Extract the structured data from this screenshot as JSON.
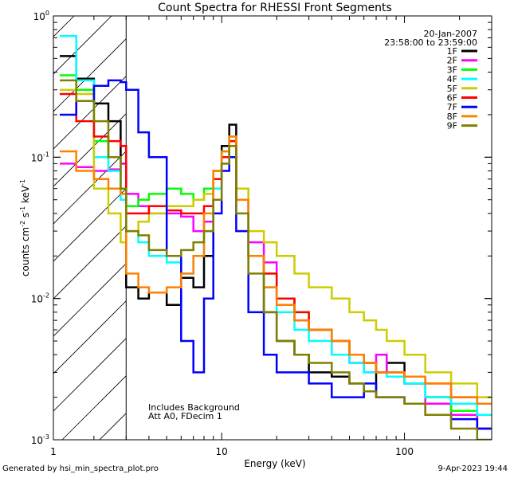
{
  "chart_data": {
    "type": "line",
    "step": true,
    "title": "Count Spectra for RHESSI Front Segments",
    "xlabel": "Energy (keV)",
    "ylabel_main": "counts cm",
    "ylabel_exp1": "-2",
    "ylabel_mid": " s",
    "ylabel_exp2": "-1",
    "ylabel_end": " keV",
    "ylabel_exp3": "-1",
    "xscale": "log",
    "yscale": "log",
    "xlim": [
      1.2,
      300
    ],
    "ylim": [
      0.001,
      1.0
    ],
    "x_ticks": [
      {
        "value": 10,
        "label": "10"
      },
      {
        "value": 100,
        "label": "100"
      }
    ],
    "x_label_one": "1",
    "y_ticks": [
      {
        "value": 1.0,
        "mant": "10",
        "exp": "0"
      },
      {
        "value": 0.1,
        "mant": "10",
        "exp": "-1"
      },
      {
        "value": 0.01,
        "mant": "10",
        "exp": "-2"
      },
      {
        "value": 0.001,
        "mant": "10",
        "exp": "-3"
      }
    ],
    "attenuator_edge_keV": 3.0,
    "date": "20-Jan-2007",
    "time_range": "23:58:00 to 23:59:00",
    "annotation_line1": "Includes Background",
    "annotation_line2": "Att A0, FDecim 1",
    "series": [
      {
        "name": "1F",
        "color": "#000000",
        "values": [
          [
            1.3,
            0.52
          ],
          [
            1.6,
            0.36
          ],
          [
            2.0,
            0.24
          ],
          [
            2.4,
            0.18
          ],
          [
            2.8,
            0.09
          ],
          [
            3.0,
            0.012
          ],
          [
            3.5,
            0.01
          ],
          [
            4.0,
            0.011
          ],
          [
            5.0,
            0.009
          ],
          [
            6.0,
            0.014
          ],
          [
            7.0,
            0.012
          ],
          [
            8.0,
            0.02
          ],
          [
            9.0,
            0.07
          ],
          [
            10.0,
            0.12
          ],
          [
            11.0,
            0.17
          ],
          [
            12.0,
            0.05
          ],
          [
            14.0,
            0.02
          ],
          [
            17.0,
            0.008
          ],
          [
            20.0,
            0.005
          ],
          [
            25.0,
            0.004
          ],
          [
            30.0,
            0.003
          ],
          [
            40.0,
            0.0028
          ],
          [
            50.0,
            0.0025
          ],
          [
            60.0,
            0.0022
          ],
          [
            70.0,
            0.003
          ],
          [
            80.0,
            0.0035
          ],
          [
            100.0,
            0.0025
          ],
          [
            130.0,
            0.002
          ],
          [
            180.0,
            0.0016
          ],
          [
            250.0,
            0.0012
          ],
          [
            300.0,
            0.0012
          ]
        ]
      },
      {
        "name": "2F",
        "color": "#ff00ff",
        "values": [
          [
            1.3,
            0.09
          ],
          [
            1.6,
            0.085
          ],
          [
            2.0,
            0.08
          ],
          [
            2.4,
            0.082
          ],
          [
            2.8,
            0.09
          ],
          [
            3.0,
            0.055
          ],
          [
            3.5,
            0.045
          ],
          [
            4.0,
            0.04
          ],
          [
            5.0,
            0.04
          ],
          [
            6.0,
            0.038
          ],
          [
            7.0,
            0.03
          ],
          [
            8.0,
            0.035
          ],
          [
            9.0,
            0.06
          ],
          [
            10.0,
            0.1
          ],
          [
            11.0,
            0.12
          ],
          [
            12.0,
            0.05
          ],
          [
            14.0,
            0.025
          ],
          [
            17.0,
            0.018
          ],
          [
            20.0,
            0.01
          ],
          [
            25.0,
            0.007
          ],
          [
            30.0,
            0.006
          ],
          [
            40.0,
            0.004
          ],
          [
            50.0,
            0.0035
          ],
          [
            60.0,
            0.003
          ],
          [
            70.0,
            0.004
          ],
          [
            80.0,
            0.003
          ],
          [
            100.0,
            0.0025
          ],
          [
            130.0,
            0.0018
          ],
          [
            180.0,
            0.0015
          ],
          [
            250.0,
            0.0012
          ],
          [
            300.0,
            0.0012
          ]
        ]
      },
      {
        "name": "3F",
        "color": "#00ff00",
        "values": [
          [
            1.3,
            0.38
          ],
          [
            1.6,
            0.3
          ],
          [
            2.0,
            0.13
          ],
          [
            2.4,
            0.1
          ],
          [
            2.8,
            0.06
          ],
          [
            3.0,
            0.045
          ],
          [
            3.5,
            0.05
          ],
          [
            4.0,
            0.055
          ],
          [
            5.0,
            0.06
          ],
          [
            6.0,
            0.055
          ],
          [
            7.0,
            0.05
          ],
          [
            8.0,
            0.06
          ],
          [
            9.0,
            0.08
          ],
          [
            10.0,
            0.11
          ],
          [
            11.0,
            0.14
          ],
          [
            12.0,
            0.06
          ],
          [
            14.0,
            0.02
          ],
          [
            17.0,
            0.015
          ],
          [
            20.0,
            0.01
          ],
          [
            25.0,
            0.008
          ],
          [
            30.0,
            0.006
          ],
          [
            40.0,
            0.005
          ],
          [
            50.0,
            0.004
          ],
          [
            60.0,
            0.0035
          ],
          [
            70.0,
            0.003
          ],
          [
            80.0,
            0.0028
          ],
          [
            100.0,
            0.0025
          ],
          [
            130.0,
            0.002
          ],
          [
            180.0,
            0.0016
          ],
          [
            250.0,
            0.0015
          ],
          [
            300.0,
            0.0015
          ]
        ]
      },
      {
        "name": "4F",
        "color": "#00ffff",
        "values": [
          [
            1.3,
            0.72
          ],
          [
            1.6,
            0.35
          ],
          [
            2.0,
            0.1
          ],
          [
            2.4,
            0.08
          ],
          [
            2.8,
            0.05
          ],
          [
            3.0,
            0.03
          ],
          [
            3.5,
            0.025
          ],
          [
            4.0,
            0.02
          ],
          [
            5.0,
            0.018
          ],
          [
            6.0,
            0.015
          ],
          [
            7.0,
            0.02
          ],
          [
            8.0,
            0.03
          ],
          [
            9.0,
            0.06
          ],
          [
            10.0,
            0.09
          ],
          [
            11.0,
            0.12
          ],
          [
            12.0,
            0.05
          ],
          [
            14.0,
            0.02
          ],
          [
            17.0,
            0.012
          ],
          [
            20.0,
            0.008
          ],
          [
            25.0,
            0.006
          ],
          [
            30.0,
            0.005
          ],
          [
            40.0,
            0.004
          ],
          [
            50.0,
            0.0035
          ],
          [
            60.0,
            0.003
          ],
          [
            70.0,
            0.003
          ],
          [
            80.0,
            0.0028
          ],
          [
            100.0,
            0.0025
          ],
          [
            130.0,
            0.002
          ],
          [
            180.0,
            0.0018
          ],
          [
            250.0,
            0.0015
          ],
          [
            300.0,
            0.0015
          ]
        ]
      },
      {
        "name": "5F",
        "color": "#cccc00",
        "values": [
          [
            1.3,
            0.3
          ],
          [
            1.6,
            0.28
          ],
          [
            2.0,
            0.06
          ],
          [
            2.4,
            0.04
          ],
          [
            2.8,
            0.025
          ],
          [
            3.0,
            0.03
          ],
          [
            3.5,
            0.035
          ],
          [
            4.0,
            0.04
          ],
          [
            5.0,
            0.045
          ],
          [
            6.0,
            0.045
          ],
          [
            7.0,
            0.05
          ],
          [
            8.0,
            0.055
          ],
          [
            9.0,
            0.08
          ],
          [
            10.0,
            0.1
          ],
          [
            11.0,
            0.13
          ],
          [
            12.0,
            0.06
          ],
          [
            14.0,
            0.03
          ],
          [
            17.0,
            0.025
          ],
          [
            20.0,
            0.02
          ],
          [
            25.0,
            0.015
          ],
          [
            30.0,
            0.012
          ],
          [
            40.0,
            0.01
          ],
          [
            50.0,
            0.008
          ],
          [
            60.0,
            0.007
          ],
          [
            70.0,
            0.006
          ],
          [
            80.0,
            0.005
          ],
          [
            100.0,
            0.004
          ],
          [
            130.0,
            0.003
          ],
          [
            180.0,
            0.0025
          ],
          [
            250.0,
            0.002
          ],
          [
            300.0,
            0.002
          ]
        ]
      },
      {
        "name": "6F",
        "color": "#ff0000",
        "values": [
          [
            1.3,
            0.28
          ],
          [
            1.6,
            0.18
          ],
          [
            2.0,
            0.14
          ],
          [
            2.4,
            0.13
          ],
          [
            2.8,
            0.12
          ],
          [
            3.0,
            0.04
          ],
          [
            3.5,
            0.04
          ],
          [
            4.0,
            0.045
          ],
          [
            5.0,
            0.042
          ],
          [
            6.0,
            0.04
          ],
          [
            7.0,
            0.04
          ],
          [
            8.0,
            0.045
          ],
          [
            9.0,
            0.07
          ],
          [
            10.0,
            0.1
          ],
          [
            11.0,
            0.13
          ],
          [
            12.0,
            0.05
          ],
          [
            14.0,
            0.02
          ],
          [
            17.0,
            0.015
          ],
          [
            20.0,
            0.01
          ],
          [
            25.0,
            0.008
          ],
          [
            30.0,
            0.006
          ],
          [
            40.0,
            0.005
          ],
          [
            50.0,
            0.004
          ],
          [
            60.0,
            0.0035
          ],
          [
            70.0,
            0.003
          ],
          [
            80.0,
            0.003
          ],
          [
            100.0,
            0.0028
          ],
          [
            130.0,
            0.0025
          ],
          [
            180.0,
            0.002
          ],
          [
            250.0,
            0.0018
          ],
          [
            300.0,
            0.0018
          ]
        ]
      },
      {
        "name": "7F",
        "color": "#0000ff",
        "values": [
          [
            1.3,
            0.2
          ],
          [
            1.6,
            0.25
          ],
          [
            2.0,
            0.32
          ],
          [
            2.4,
            0.35
          ],
          [
            2.8,
            0.34
          ],
          [
            3.0,
            0.3
          ],
          [
            3.5,
            0.15
          ],
          [
            4.0,
            0.1
          ],
          [
            5.0,
            0.02
          ],
          [
            6.0,
            0.005
          ],
          [
            7.0,
            0.003
          ],
          [
            8.0,
            0.01
          ],
          [
            9.0,
            0.04
          ],
          [
            10.0,
            0.08
          ],
          [
            11.0,
            0.1
          ],
          [
            12.0,
            0.03
          ],
          [
            14.0,
            0.008
          ],
          [
            17.0,
            0.004
          ],
          [
            20.0,
            0.003
          ],
          [
            25.0,
            0.003
          ],
          [
            30.0,
            0.0025
          ],
          [
            40.0,
            0.002
          ],
          [
            50.0,
            0.002
          ],
          [
            60.0,
            0.0025
          ],
          [
            70.0,
            0.002
          ],
          [
            80.0,
            0.002
          ],
          [
            100.0,
            0.0018
          ],
          [
            130.0,
            0.0015
          ],
          [
            180.0,
            0.0014
          ],
          [
            250.0,
            0.0012
          ],
          [
            300.0,
            0.0012
          ]
        ]
      },
      {
        "name": "8F",
        "color": "#ff8000",
        "values": [
          [
            1.3,
            0.11
          ],
          [
            1.6,
            0.08
          ],
          [
            2.0,
            0.07
          ],
          [
            2.4,
            0.06
          ],
          [
            2.8,
            0.055
          ],
          [
            3.0,
            0.015
          ],
          [
            3.5,
            0.012
          ],
          [
            4.0,
            0.011
          ],
          [
            5.0,
            0.012
          ],
          [
            6.0,
            0.015
          ],
          [
            7.0,
            0.02
          ],
          [
            8.0,
            0.04
          ],
          [
            9.0,
            0.08
          ],
          [
            10.0,
            0.11
          ],
          [
            11.0,
            0.14
          ],
          [
            12.0,
            0.05
          ],
          [
            14.0,
            0.02
          ],
          [
            17.0,
            0.012
          ],
          [
            20.0,
            0.009
          ],
          [
            25.0,
            0.007
          ],
          [
            30.0,
            0.006
          ],
          [
            40.0,
            0.005
          ],
          [
            50.0,
            0.004
          ],
          [
            60.0,
            0.0035
          ],
          [
            70.0,
            0.003
          ],
          [
            80.0,
            0.003
          ],
          [
            100.0,
            0.0028
          ],
          [
            130.0,
            0.0025
          ],
          [
            180.0,
            0.002
          ],
          [
            250.0,
            0.0018
          ],
          [
            300.0,
            0.0018
          ]
        ]
      },
      {
        "name": "9F",
        "color": "#808000",
        "values": [
          [
            1.3,
            0.35
          ],
          [
            1.6,
            0.25
          ],
          [
            2.0,
            0.18
          ],
          [
            2.4,
            0.1
          ],
          [
            2.8,
            0.06
          ],
          [
            3.0,
            0.03
          ],
          [
            3.5,
            0.028
          ],
          [
            4.0,
            0.022
          ],
          [
            5.0,
            0.02
          ],
          [
            6.0,
            0.022
          ],
          [
            7.0,
            0.025
          ],
          [
            8.0,
            0.03
          ],
          [
            9.0,
            0.05
          ],
          [
            10.0,
            0.09
          ],
          [
            11.0,
            0.12
          ],
          [
            12.0,
            0.04
          ],
          [
            14.0,
            0.015
          ],
          [
            17.0,
            0.008
          ],
          [
            20.0,
            0.005
          ],
          [
            25.0,
            0.004
          ],
          [
            30.0,
            0.0035
          ],
          [
            40.0,
            0.003
          ],
          [
            50.0,
            0.0025
          ],
          [
            60.0,
            0.0022
          ],
          [
            70.0,
            0.002
          ],
          [
            80.0,
            0.002
          ],
          [
            100.0,
            0.0018
          ],
          [
            130.0,
            0.0015
          ],
          [
            180.0,
            0.0012
          ],
          [
            250.0,
            0.001
          ],
          [
            300.0,
            0.001
          ]
        ]
      }
    ]
  },
  "footer": {
    "generated_by": "Generated by hsi_min_spectra_plot.pro",
    "timestamp": "9-Apr-2023 19:44"
  }
}
